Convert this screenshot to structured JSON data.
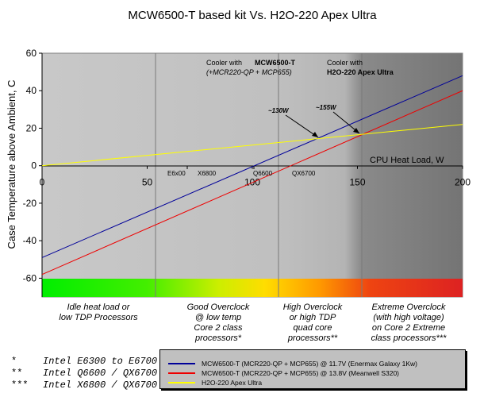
{
  "chart_data": {
    "type": "line",
    "title": "MCW6500-T based kit Vs. H2O-220 Apex Ultra",
    "xlabel": "CPU Heat Load, W",
    "ylabel": "Case Temperature above Ambient, C",
    "xlim": [
      0,
      200
    ],
    "ylim": [
      -70,
      60
    ],
    "x_ticks": [
      "0",
      "50",
      "100",
      "150",
      "200"
    ],
    "y_ticks": [
      "60",
      "40",
      "20",
      "0",
      "-20",
      "-40",
      "-60"
    ],
    "grid": "vertical lines at 54, 112, 151 W",
    "series": [
      {
        "name": "MCW6500-T (MCR220-QP + MCP655) @ 11.7V (Enermax Galaxy 1Kw)",
        "color": "#000099",
        "x": [
          0,
          200
        ],
        "y": [
          -49,
          48
        ]
      },
      {
        "name": "MCW6500-T (MCR220-QP + MCP655) @ 13.8V (Meanwell S320)",
        "color": "#ee0000",
        "x": [
          0,
          200
        ],
        "y": [
          -58,
          40
        ]
      },
      {
        "name": "H2O-220 Apex Ultra",
        "color": "#ffff00",
        "x": [
          0,
          200
        ],
        "y": [
          0,
          22
        ]
      }
    ],
    "cpu_markers": [
      "E6x00",
      "X6800",
      "Q6600",
      "QX6700"
    ],
    "annotations": [
      {
        "line1": "Cooler with",
        "line2": "MCW6500-T",
        "line3": "(+MCR220-QP + MCP655)"
      },
      {
        "line1": "Cooler with",
        "line2": "H2O-220 Apex Ultra"
      },
      {
        "text": "~130W"
      },
      {
        "text": "~155W"
      }
    ],
    "zones": [
      {
        "color": "#00ee00",
        "label_lines": [
          "Idle heat load or",
          "low TDP Processors"
        ]
      },
      {
        "color": "#88ee00",
        "label_lines": [
          "Good Overclock",
          "@ low temp",
          "Core 2 class",
          "processors*"
        ]
      },
      {
        "color": "#ffcc00",
        "label_lines": [
          "High Overclock",
          "or high TDP",
          "quad core",
          "processors**"
        ]
      },
      {
        "color": "#dd2222",
        "label_lines": [
          "Extreme Overclock",
          "(with high voltage)",
          "on Core 2 Extreme",
          "class processors***"
        ]
      }
    ]
  },
  "footnotes": [
    {
      "mark": "*",
      "text": "Intel E6300 to E6700"
    },
    {
      "mark": "**",
      "text": "Intel Q6600 / QX6700"
    },
    {
      "mark": "***",
      "text": "Intel X6800 / QX6700"
    }
  ],
  "legend": [
    {
      "label": "MCW6500-T (MCR220-QP + MCP655) @ 11.7V (Enermax Galaxy 1Kw)",
      "color": "#000099"
    },
    {
      "label": "MCW6500-T (MCR220-QP + MCP655) @ 13.8V (Meanwell S320)",
      "color": "#ee0000"
    },
    {
      "label": "H2O-220 Apex Ultra",
      "color": "#ffff00"
    }
  ]
}
